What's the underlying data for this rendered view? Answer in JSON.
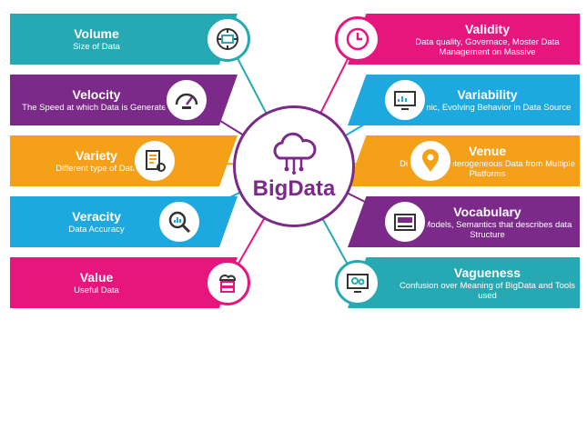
{
  "center": {
    "title": "BigData",
    "icon": "cloud-circuit-icon",
    "color": "#7b2a8a"
  },
  "left": [
    {
      "title": "Volume",
      "subtitle": "Size of Data",
      "icon": "volume-gauge-icon",
      "color": "#27a9b3"
    },
    {
      "title": "Velocity",
      "subtitle": "The Speed at which Data is Generated",
      "icon": "speedometer-icon",
      "color": "#7b2a8a"
    },
    {
      "title": "Variety",
      "subtitle": "Different type of Data",
      "icon": "document-gears-icon",
      "color": "#f5a019"
    },
    {
      "title": "Veracity",
      "subtitle": "Data Accuracy",
      "icon": "magnifier-chart-icon",
      "color": "#1ea8e0"
    },
    {
      "title": "Value",
      "subtitle": "Useful Data",
      "icon": "server-cloud-icon",
      "color": "#e7167f"
    }
  ],
  "right": [
    {
      "title": "Validity",
      "subtitle": "Data quality, Governace, Moster Data Management on Massive",
      "icon": "clock-icon",
      "color": "#e7167f"
    },
    {
      "title": "Variability",
      "subtitle": "Dynamic, Evolving Behavior in Data Source",
      "icon": "monitor-chart-icon",
      "color": "#1ea8e0"
    },
    {
      "title": "Venue",
      "subtitle": "Distributed Heterogeneous Data from Multiple Platforms",
      "icon": "location-pin-icon",
      "color": "#f5a019"
    },
    {
      "title": "Vocabulary",
      "subtitle": "Data Models, Semantics that describes data Structure",
      "icon": "id-card-icon",
      "color": "#7b2a8a"
    },
    {
      "title": "Vagueness",
      "subtitle": "Confusion over Meaning of BigData and Tools used",
      "icon": "monitor-gears-icon",
      "color": "#27a9b3"
    }
  ]
}
